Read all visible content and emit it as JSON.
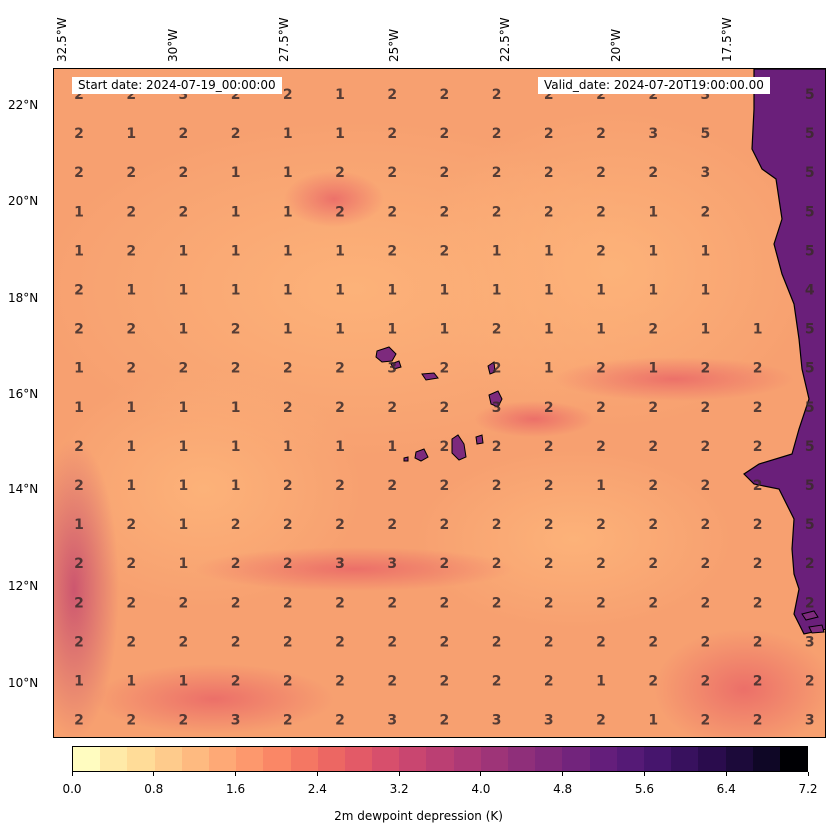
{
  "header": {
    "start_date": "Start date: 2024-07-19_00:00:00",
    "valid_date": "Valid_date: 2024-07-20T19:00:00.00"
  },
  "lon_labels": [
    "32.5°W",
    "30°W",
    "27.5°W",
    "25°W",
    "22.5°W",
    "20°W",
    "17.5°W"
  ],
  "lat_labels": [
    "22°N",
    "20°N",
    "18°N",
    "16°N",
    "14°N",
    "12°N",
    "10°N"
  ],
  "colors": {
    "ocean_base": "#f7a070",
    "land": "#6a1f7a",
    "coast": "#000000"
  },
  "colorbar": {
    "ticks": [
      "0.0",
      "0.8",
      "1.6",
      "2.4",
      "3.2",
      "4.0",
      "4.8",
      "5.6",
      "6.4",
      "7.2"
    ],
    "label": "2m dewpoint depression (K)",
    "colors": [
      "#fffcc0",
      "#ffeaa8",
      "#ffdc98",
      "#fecb8c",
      "#feba80",
      "#fea976",
      "#fd986d",
      "#fa8766",
      "#f47763",
      "#ec6763",
      "#e35a67",
      "#d74f6c",
      "#c94670",
      "#bb3f73",
      "#ad3976",
      "#9e3478",
      "#8f2f7a",
      "#81297b",
      "#72247c",
      "#641e7b",
      "#551a76",
      "#46156d",
      "#38115e",
      "#2a0c4d",
      "#1c0a3a",
      "#0f0726",
      "#000004"
    ]
  },
  "grid_values": [
    [
      "2",
      "2",
      "3",
      "2",
      "2",
      "1",
      "2",
      "2",
      "2",
      "2",
      "2",
      "2",
      "3",
      "5"
    ],
    [
      "2",
      "1",
      "2",
      "2",
      "1",
      "1",
      "2",
      "2",
      "2",
      "2",
      "2",
      "3",
      "5",
      "5"
    ],
    [
      "2",
      "2",
      "2",
      "1",
      "1",
      "2",
      "2",
      "2",
      "2",
      "2",
      "2",
      "2",
      "3",
      "5"
    ],
    [
      "1",
      "2",
      "2",
      "1",
      "1",
      "2",
      "2",
      "2",
      "2",
      "2",
      "2",
      "1",
      "2",
      "5"
    ],
    [
      "1",
      "2",
      "1",
      "1",
      "1",
      "1",
      "2",
      "2",
      "1",
      "1",
      "2",
      "1",
      "1",
      "5"
    ],
    [
      "2",
      "1",
      "1",
      "1",
      "1",
      "1",
      "1",
      "1",
      "1",
      "1",
      "1",
      "1",
      "1",
      "4"
    ],
    [
      "2",
      "2",
      "1",
      "2",
      "1",
      "1",
      "1",
      "1",
      "2",
      "1",
      "1",
      "2",
      "1",
      "1",
      "5"
    ],
    [
      "1",
      "2",
      "2",
      "2",
      "2",
      "2",
      "3",
      "2",
      "2",
      "1",
      "2",
      "1",
      "2",
      "2",
      "5"
    ],
    [
      "1",
      "1",
      "1",
      "1",
      "2",
      "2",
      "2",
      "2",
      "3",
      "2",
      "2",
      "2",
      "2",
      "2",
      "5"
    ],
    [
      "2",
      "1",
      "1",
      "1",
      "1",
      "1",
      "1",
      "2",
      "2",
      "2",
      "2",
      "2",
      "2",
      "2",
      "5"
    ],
    [
      "2",
      "1",
      "1",
      "1",
      "2",
      "2",
      "2",
      "2",
      "2",
      "2",
      "1",
      "2",
      "2",
      "2",
      "5"
    ],
    [
      "1",
      "2",
      "1",
      "2",
      "2",
      "2",
      "2",
      "2",
      "2",
      "2",
      "2",
      "2",
      "2",
      "2",
      "5"
    ],
    [
      "2",
      "2",
      "1",
      "2",
      "2",
      "3",
      "3",
      "2",
      "2",
      "2",
      "2",
      "2",
      "2",
      "2",
      "2"
    ],
    [
      "2",
      "2",
      "2",
      "2",
      "2",
      "2",
      "2",
      "2",
      "2",
      "2",
      "2",
      "2",
      "2",
      "2",
      "2"
    ],
    [
      "2",
      "2",
      "2",
      "2",
      "2",
      "2",
      "2",
      "2",
      "2",
      "2",
      "2",
      "2",
      "2",
      "2",
      "3"
    ],
    [
      "1",
      "1",
      "1",
      "2",
      "2",
      "2",
      "2",
      "2",
      "2",
      "2",
      "1",
      "2",
      "2",
      "2",
      "2"
    ],
    [
      "2",
      "2",
      "2",
      "3",
      "2",
      "2",
      "3",
      "2",
      "3",
      "3",
      "2",
      "1",
      "2",
      "2",
      "3"
    ]
  ]
}
